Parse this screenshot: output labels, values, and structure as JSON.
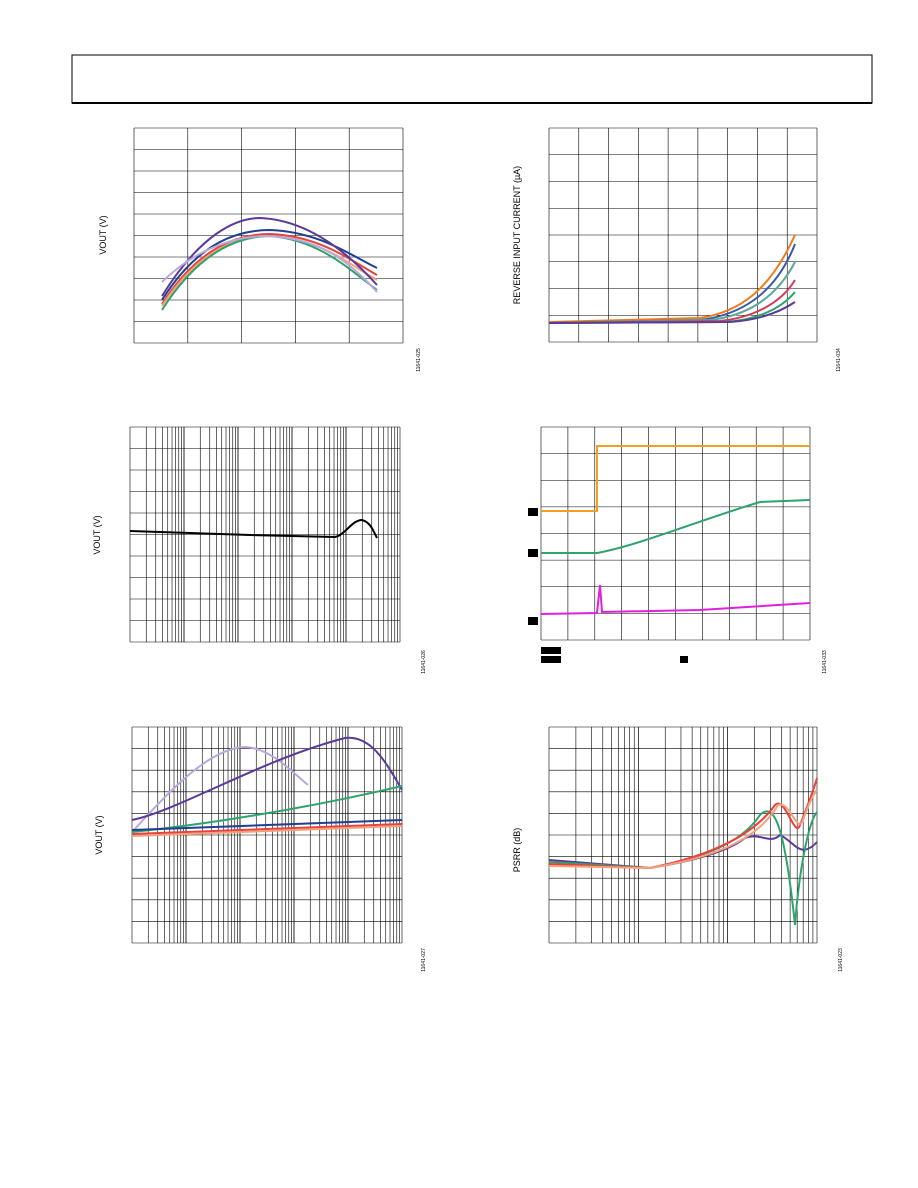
{
  "figures": [
    {
      "axis_label": "VOUT (V)",
      "figure_id": "11641-025"
    },
    {
      "axis_label": "REVERSE INPUT CURRENT (µA)",
      "figure_id": "11641-034"
    },
    {
      "axis_label": "VOUT (V)",
      "figure_id": "11641-026"
    },
    {
      "figure_id": "11641-033"
    },
    {
      "axis_label": "VOUT (V)",
      "figure_id": "11641-027"
    },
    {
      "axis_label": "PSRR (dB)",
      "figure_id": "11641-023"
    }
  ]
}
